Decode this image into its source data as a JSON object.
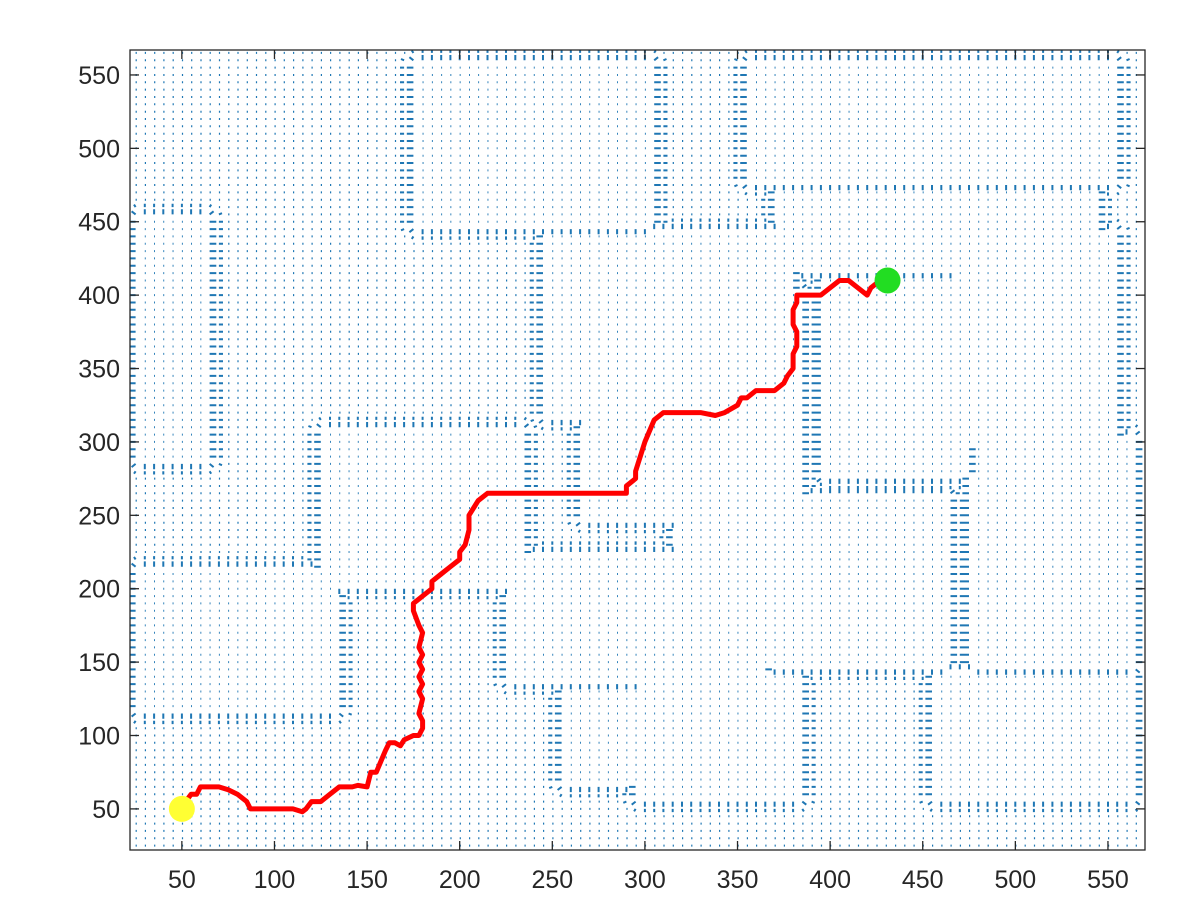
{
  "chart_data": {
    "type": "scatter",
    "title": "",
    "xlabel": "",
    "ylabel": "",
    "xlim": [
      22,
      570
    ],
    "ylim": [
      22,
      567
    ],
    "grid": false,
    "legend": "none",
    "x_ticks": [
      50,
      100,
      150,
      200,
      250,
      300,
      350,
      400,
      450,
      500,
      550
    ],
    "y_ticks": [
      50,
      100,
      150,
      200,
      250,
      300,
      350,
      400,
      450,
      500,
      550
    ],
    "x_tick_labels": [
      "50",
      "100",
      "150",
      "200",
      "250",
      "300",
      "350",
      "400",
      "450",
      "500",
      "550"
    ],
    "y_tick_labels": [
      "50",
      "100",
      "150",
      "200",
      "250",
      "300",
      "350",
      "400",
      "450",
      "500",
      "550"
    ],
    "colors": {
      "field": "#1f77b4",
      "path": "#ff0000",
      "start": "#ffff33",
      "goal": "#22dd22",
      "axes": "#262626"
    },
    "vector_field": {
      "kind": "quiver",
      "grid_spacing": 5,
      "x_range": [
        25,
        565
      ],
      "y_range": [
        25,
        565
      ]
    },
    "obstacles": [
      {
        "x": [
          180,
          300
        ],
        "y": [
          450,
          555
        ]
      },
      {
        "x": [
          360,
          550
        ],
        "y": [
          480,
          555
        ]
      },
      {
        "x": [
          250,
          375
        ],
        "y": [
          320,
          440
        ]
      },
      {
        "x": [
          375,
          540
        ],
        "y": [
          420,
          470
        ]
      },
      {
        "x": [
          130,
          230
        ],
        "y": [
          205,
          305
        ]
      },
      {
        "x": [
          270,
          380
        ],
        "y": [
          250,
          400
        ]
      },
      {
        "x": [
          400,
          470
        ],
        "y": [
          280,
          410
        ]
      },
      {
        "x": [
          470,
          550
        ],
        "y": [
          300,
          440
        ]
      },
      {
        "x": [
          230,
          360
        ],
        "y": [
          140,
          220
        ]
      },
      {
        "x": [
          320,
          460
        ],
        "y": [
          150,
          260
        ]
      },
      {
        "x": [
          480,
          560
        ],
        "y": [
          150,
          300
        ]
      },
      {
        "x": [
          460,
          560
        ],
        "y": [
          60,
          140
        ]
      },
      {
        "x": [
          30,
          130
        ],
        "y": [
          120,
          210
        ]
      },
      {
        "x": [
          300,
          380
        ],
        "y": [
          60,
          140
        ]
      },
      {
        "x": [
          260,
          300
        ],
        "y": [
          70,
          130
        ]
      },
      {
        "x": [
          500,
          560
        ],
        "y": [
          260,
          300
        ]
      },
      {
        "x": [
          30,
          60
        ],
        "y": [
          290,
          450
        ]
      }
    ],
    "series": [
      {
        "type": "line",
        "x": [
          50,
          52,
          55,
          58,
          60,
          65,
          70,
          75,
          80,
          85,
          87,
          90,
          100,
          110,
          115,
          117,
          120,
          125,
          130,
          135,
          140,
          142,
          145,
          150,
          152,
          155,
          160,
          162,
          165,
          168,
          170,
          175,
          178,
          180,
          180,
          178,
          180,
          178,
          180,
          178,
          180,
          178,
          180,
          178,
          180,
          178,
          175,
          175,
          180,
          185,
          185,
          190,
          195,
          200,
          200,
          203,
          205,
          205,
          210,
          215,
          220,
          250,
          270,
          290,
          290,
          295,
          295,
          300,
          305,
          310,
          320,
          330,
          338,
          343,
          350,
          352,
          355,
          360,
          365,
          370,
          375,
          377,
          380,
          380,
          382,
          382,
          380,
          380,
          382,
          382,
          385,
          388,
          395,
          400,
          405,
          410,
          415,
          420,
          422,
          425,
          430
        ],
        "y": [
          55,
          55,
          60,
          60,
          65,
          65,
          65,
          63,
          60,
          55,
          50,
          50,
          50,
          50,
          48,
          50,
          55,
          55,
          60,
          65,
          65,
          65,
          66,
          65,
          75,
          75,
          90,
          95,
          95,
          93,
          97,
          100,
          100,
          105,
          110,
          115,
          125,
          130,
          135,
          140,
          145,
          150,
          155,
          160,
          170,
          175,
          185,
          190,
          195,
          200,
          205,
          210,
          215,
          220,
          225,
          230,
          240,
          250,
          260,
          265,
          265,
          265,
          265,
          265,
          270,
          275,
          280,
          300,
          315,
          320,
          320,
          320,
          318,
          320,
          325,
          330,
          330,
          335,
          335,
          335,
          340,
          345,
          350,
          360,
          365,
          375,
          380,
          390,
          395,
          400,
          400,
          400,
          400,
          405,
          410,
          410,
          405,
          400,
          405,
          408,
          410
        ]
      },
      {
        "type": "marker",
        "x": [
          50
        ],
        "y": [
          50
        ]
      },
      {
        "type": "marker",
        "x": [
          431
        ],
        "y": [
          410
        ]
      }
    ]
  }
}
